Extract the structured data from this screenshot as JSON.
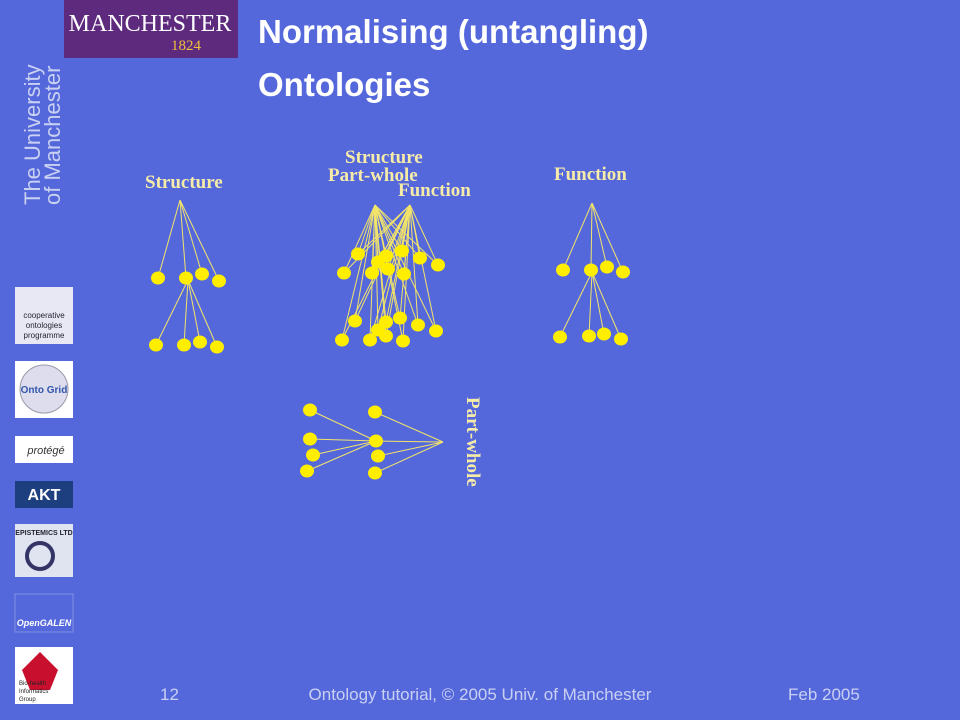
{
  "header": {
    "logo_name": "MANCHESTER",
    "logo_year": "1824",
    "university_line1": "The University",
    "university_line2": "of Manchester"
  },
  "title": {
    "line1": "Normalising (untangling)",
    "line2": "Ontologies"
  },
  "labels": {
    "structure_left": "Structure",
    "structure_middle": "Structure",
    "part_whole_middle": "Part-whole",
    "function_middle": "Function",
    "function_right": "Function",
    "part_whole_bottom": "Part-whole"
  },
  "logos": {
    "codde_line1": "cooperative",
    "codde_line2": "ontologies",
    "codde_line3": "programme",
    "ontogrid": "Onto Grid",
    "protege": "protégé",
    "akt": "AKT",
    "epistemics": "EPISTEMICS LTD",
    "opengalen": "OpenGALEN",
    "bhig_line1": "Bio-health",
    "bhig_line2": "Informatics",
    "bhig_line3": "Group"
  },
  "footer": {
    "page": "12",
    "text": "Ontology tutorial, © 2005 Univ. of Manchester",
    "date": "Feb 2005"
  }
}
